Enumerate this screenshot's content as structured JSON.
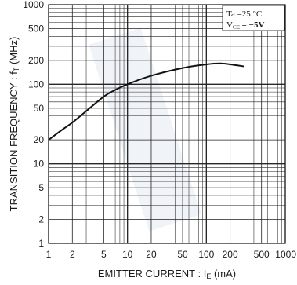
{
  "chart_data": {
    "type": "line",
    "x_scale": "log",
    "y_scale": "log",
    "xlim": [
      1,
      1000
    ],
    "ylim": [
      1,
      1000
    ],
    "grid": true,
    "xlabel_main": "EMITTER CURRENT : I",
    "xlabel_sub": "E",
    "xlabel_unit": " (mA)",
    "ylabel_main": "TRANSITION FREQUENCY : f",
    "ylabel_sub": "T",
    "ylabel_unit": " (MHz)",
    "x_ticks": [
      1,
      2,
      5,
      10,
      20,
      50,
      100,
      200,
      500,
      1000
    ],
    "x_tick_labels": [
      "1",
      "2",
      "5",
      "10",
      "20",
      "50",
      "100",
      "200",
      "500",
      "1000"
    ],
    "y_ticks": [
      1,
      2,
      5,
      10,
      20,
      50,
      100,
      200,
      500,
      1000
    ],
    "y_tick_labels": [
      "1",
      "2",
      "5",
      "10",
      "20",
      "50",
      "100",
      "200",
      "500",
      "1000"
    ],
    "conditions": {
      "line1": "Ta =25 °C",
      "line2_prefix": "V",
      "line2_sub": "CE",
      "line2_suffix": " = −5V"
    },
    "series": [
      {
        "x": [
          1,
          1.5,
          2,
          3,
          5,
          7,
          10,
          20,
          50,
          100,
          150,
          200,
          300
        ],
        "y": [
          20,
          27,
          33,
          46,
          70,
          85,
          100,
          128,
          160,
          178,
          183,
          178,
          168
        ]
      }
    ]
  }
}
